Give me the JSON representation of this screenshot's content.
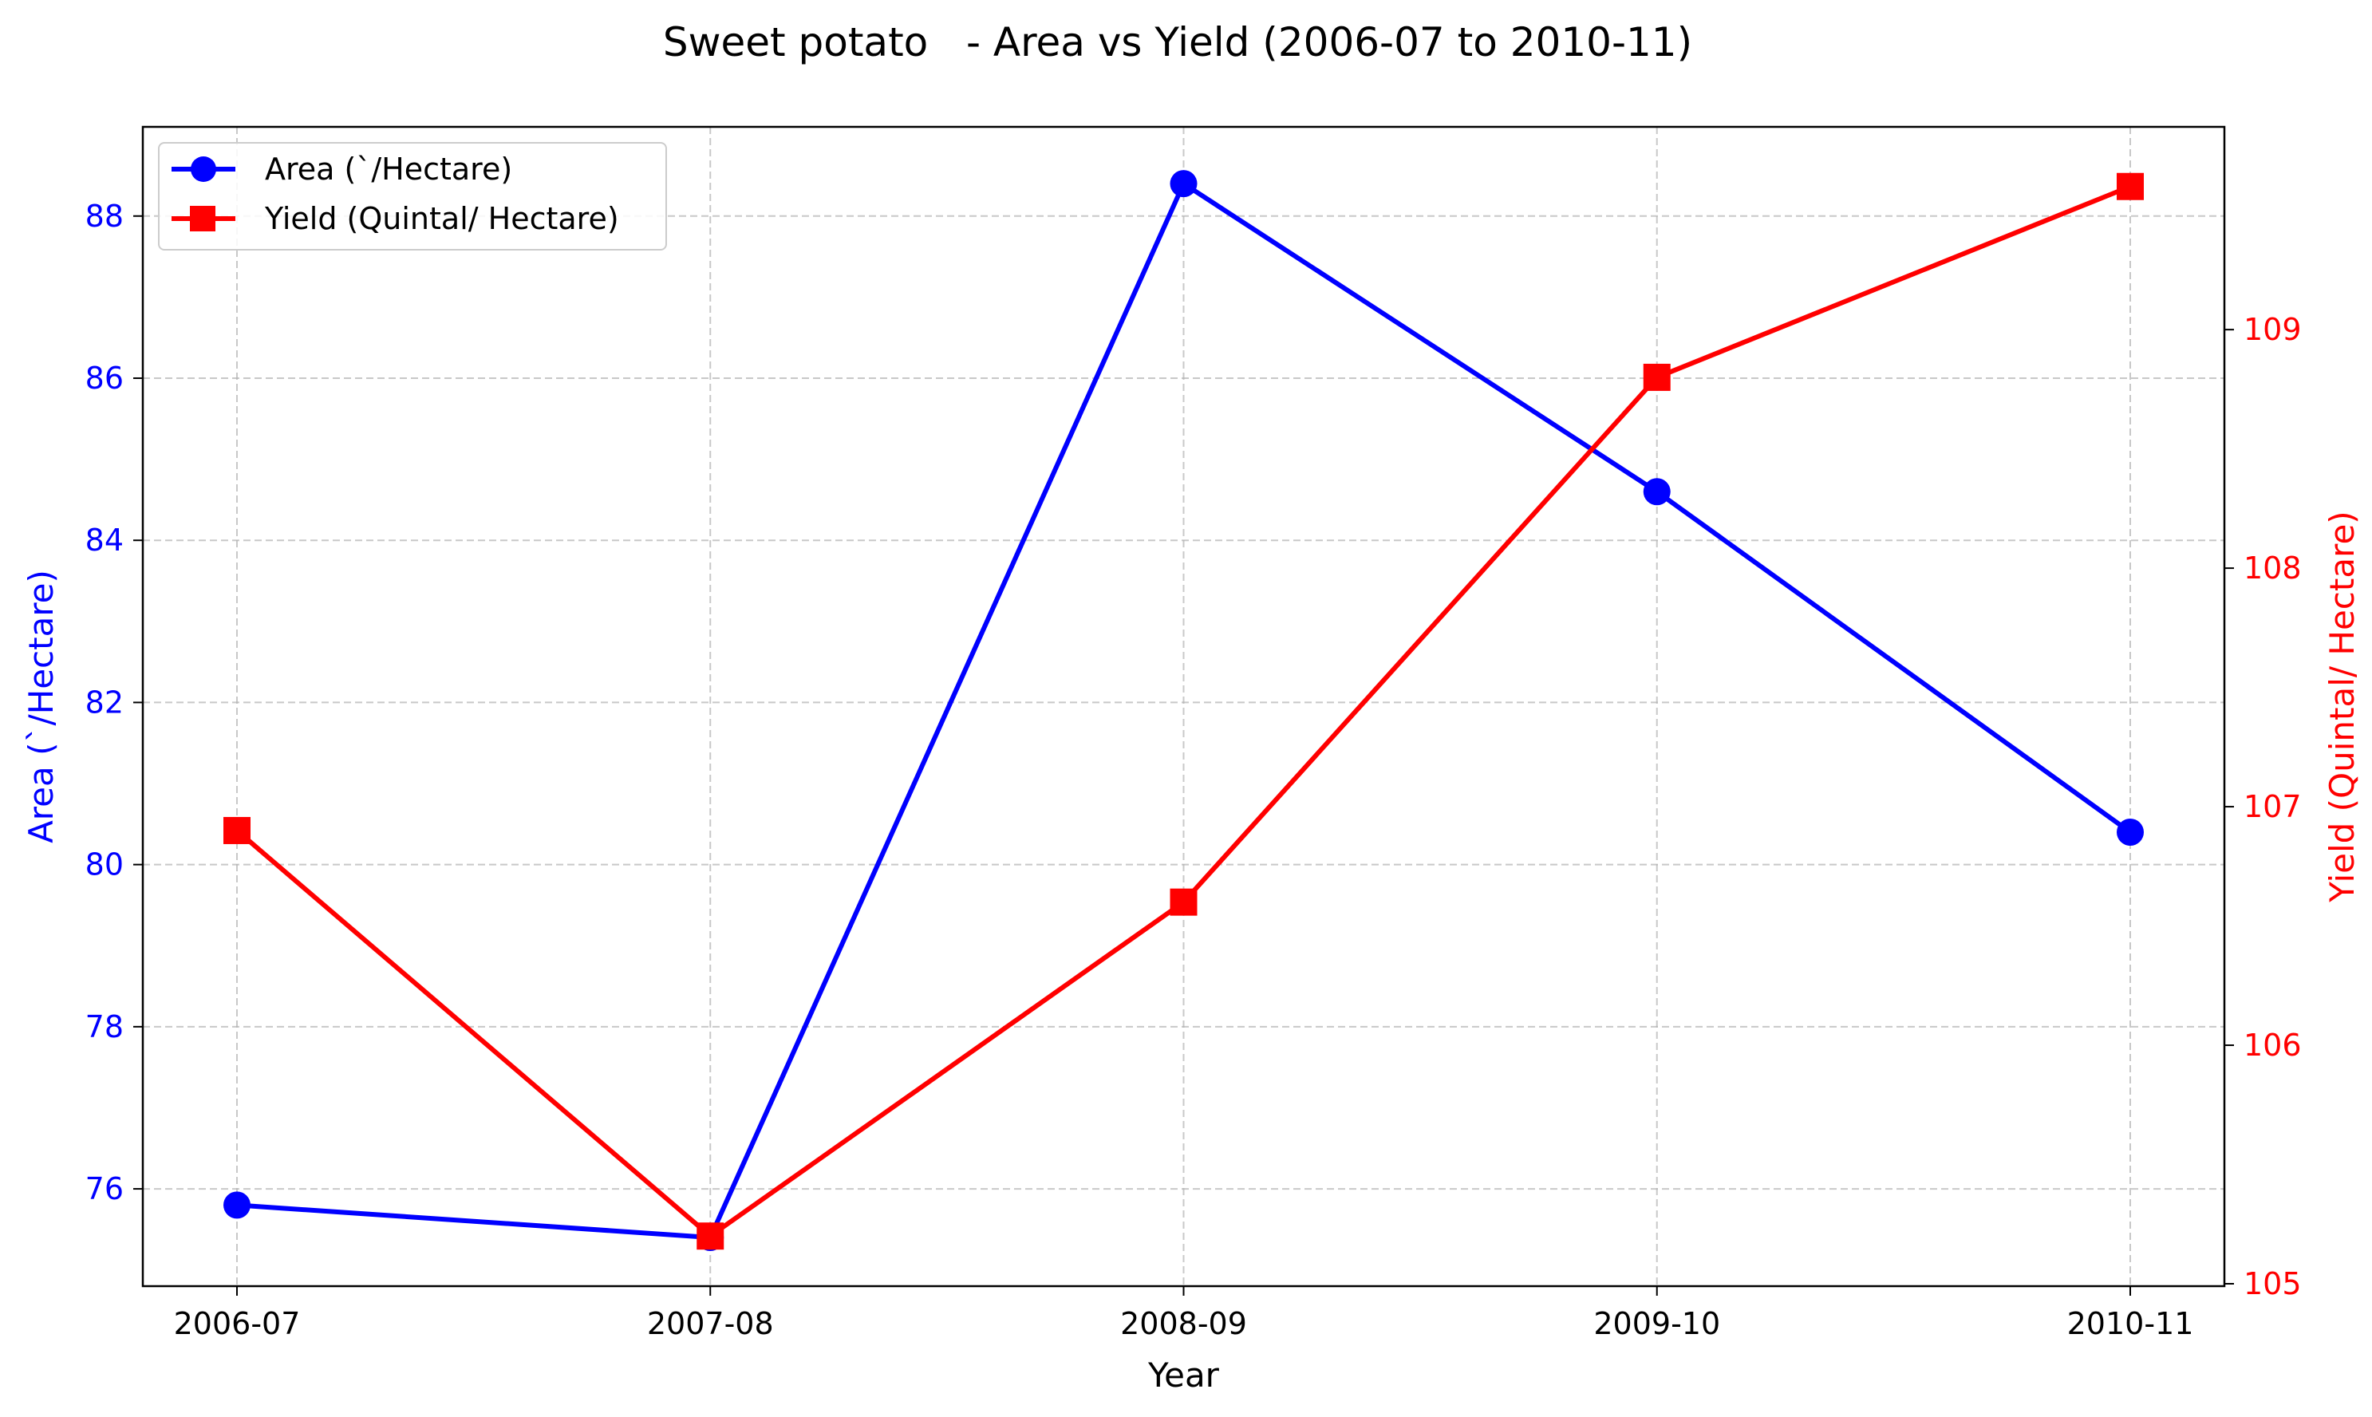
{
  "chart_data": {
    "type": "line",
    "title": "Sweet potato   - Area vs Yield (2006-07 to 2010-11)",
    "xlabel": "Year",
    "categories": [
      "2006-07",
      "2007-08",
      "2008-09",
      "2009-10",
      "2010-11"
    ],
    "y_left": {
      "label": "Area (`/Hectare)",
      "range": [
        74.8,
        89.1
      ],
      "ticks": [
        "76",
        "78",
        "80",
        "82",
        "84",
        "86",
        "88"
      ],
      "color": "#0000ff"
    },
    "y_right": {
      "label": "Yield (Quintal/ Hectare)",
      "range": [
        104.99,
        109.85
      ],
      "ticks": [
        "105",
        "106",
        "107",
        "108",
        "109"
      ],
      "color": "#ff0000"
    },
    "series": [
      {
        "name": "Area (`/Hectare)",
        "axis": "left",
        "color": "#0000ff",
        "marker": "circle",
        "values": [
          75.8,
          75.4,
          88.4,
          84.6,
          80.4
        ]
      },
      {
        "name": "Yield (Quintal/ Hectare)",
        "axis": "right",
        "color": "#ff0000",
        "marker": "square",
        "values": [
          106.9,
          105.2,
          106.6,
          108.8,
          109.6
        ]
      }
    ],
    "grid": true,
    "legend": "top-left"
  }
}
